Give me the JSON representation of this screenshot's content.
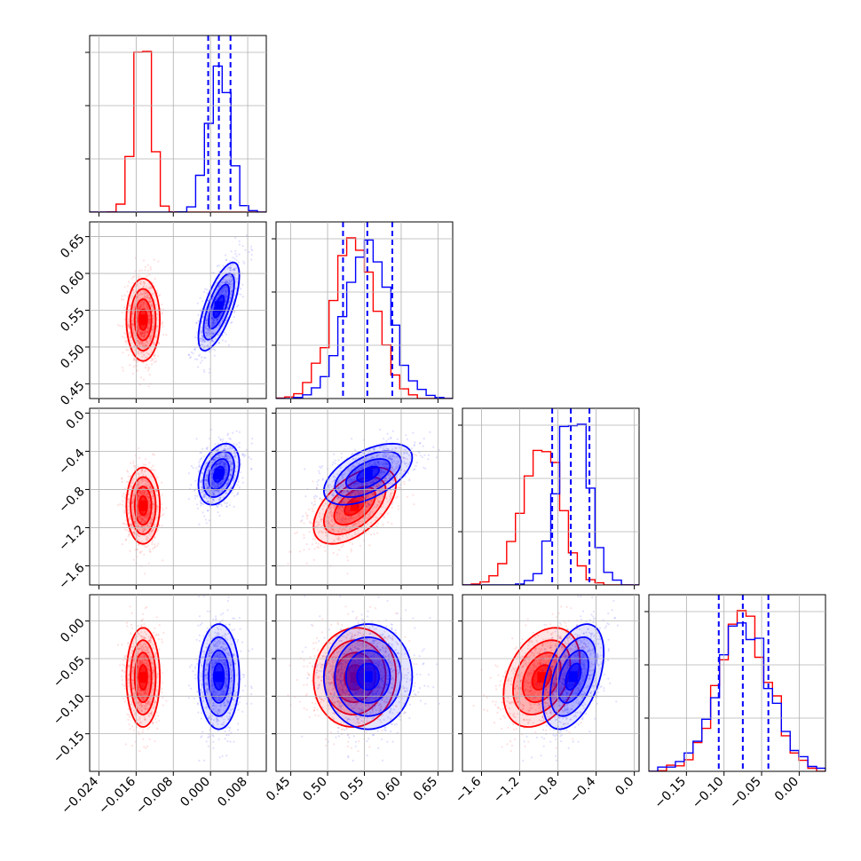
{
  "chart_data": {
    "type": "corner",
    "colors": {
      "series_a": "#ff0000",
      "series_b": "#0000ff",
      "grid": "#b0b0b0",
      "quantile": "#0000ff"
    },
    "series": [
      {
        "color": "#ff0000",
        "means": [
          -0.0145,
          0.537,
          -0.97,
          -0.075
        ],
        "sds": [
          0.0018,
          0.028,
          0.2,
          0.033
        ]
      },
      {
        "color": "#0000ff",
        "means": [
          0.0018,
          0.555,
          -0.64,
          -0.074
        ],
        "sds": [
          0.0022,
          0.03,
          0.16,
          0.035
        ]
      }
    ],
    "correlations": [
      [
        [
          1,
          0,
          0,
          0
        ],
        [
          0,
          1,
          0.55,
          0.05
        ],
        [
          0,
          0.55,
          1,
          0.35
        ],
        [
          0,
          0.05,
          0.35,
          1
        ]
      ],
      [
        [
          1,
          0.7,
          0.35,
          0
        ],
        [
          0.7,
          1,
          0.55,
          0
        ],
        [
          0.35,
          0.55,
          1,
          0.45
        ],
        [
          0,
          0,
          0.45,
          1
        ]
      ]
    ],
    "parameters": [
      {
        "range": [
          -0.026,
          0.012
        ],
        "ticks": [
          -0.024,
          -0.016,
          -0.008,
          0.0,
          0.008
        ],
        "tick_labels": [
          "−0.024",
          "−0.016",
          "−0.008",
          "0.000",
          "0.008"
        ]
      },
      {
        "range": [
          0.43,
          0.67
        ],
        "ticks": [
          0.45,
          0.5,
          0.55,
          0.6,
          0.65
        ],
        "tick_labels": [
          "0.45",
          "0.50",
          "0.55",
          "0.60",
          "0.65"
        ]
      },
      {
        "range": [
          -1.8,
          0.05
        ],
        "ticks": [
          -1.6,
          -1.2,
          -0.8,
          -0.4,
          0.0
        ],
        "tick_labels": [
          "−1.6",
          "−1.2",
          "−0.8",
          "−0.4",
          "0.0"
        ]
      },
      {
        "range": [
          -0.2,
          0.035
        ],
        "ticks": [
          -0.15,
          -0.1,
          -0.05,
          0.0
        ],
        "tick_labels": [
          "−0.15",
          "−0.10",
          "−0.05",
          "0.00"
        ]
      }
    ],
    "quantiles": [
      [
        -0.0005,
        0.0018,
        0.0043
      ],
      [
        0.521,
        0.554,
        0.588
      ],
      [
        -0.86,
        -0.665,
        -0.47
      ],
      [
        -0.107,
        -0.075,
        -0.041
      ]
    ],
    "grid": true,
    "y_ticks_on_diagonal_labelled": false
  }
}
